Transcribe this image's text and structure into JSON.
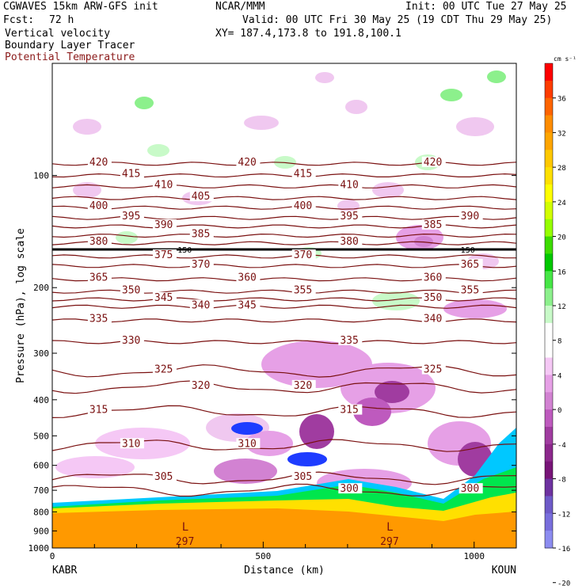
{
  "header": {
    "model": "CGWAVES 15km ARW-GFS init",
    "org": "NCAR/MMM",
    "init": "Init: 00 UTC Tue 27 May 25",
    "fcst_label": "Fcst:",
    "fcst_value": "72 h",
    "valid": "Valid: 00 UTC Fri 30 May 25 (19 CDT Thu 29 May 25)",
    "xy": "XY= 187.4,173.8 to 191.8,100.1",
    "field1": "Vertical velocity",
    "field2": "Boundary Layer Tracer",
    "field3": "Potential Temperature"
  },
  "chart_data": {
    "type": "heatmap",
    "xlabel": "Distance (km)",
    "ylabel": "Pressure (hPa), log scale",
    "x_ticks": [
      0,
      500,
      1000
    ],
    "xlim": [
      0,
      1100
    ],
    "y_ticks": [
      100,
      200,
      300,
      400,
      500,
      600,
      700,
      800,
      900,
      1000
    ],
    "ylim": [
      1000,
      50
    ],
    "left_station": "KABR",
    "right_station": "KOUN",
    "colorbar": {
      "unit": "cm s⁻¹",
      "labels": [
        36,
        32,
        28,
        24,
        20,
        16,
        12,
        8,
        4,
        0,
        -4,
        -8,
        -12,
        -16,
        -20
      ],
      "colors": [
        "#ff0000",
        "#ff3c00",
        "#ff6400",
        "#ff8c00",
        "#ffa500",
        "#ffc800",
        "#ffe000",
        "#ffff00",
        "#d2ff00",
        "#96ff00",
        "#3cdc00",
        "#00c800",
        "#46e646",
        "#8cf08c",
        "#c8fac8",
        "#ffffff",
        "#ffffff",
        "#f5c8f5",
        "#e6a0e6",
        "#d282d2",
        "#be5abe",
        "#a03ca0",
        "#8c288c",
        "#781478",
        "#6e32a0",
        "#6e5ac8",
        "#786edc",
        "#8c8cf0"
      ]
    },
    "theta_contours": [
      {
        "p": 93,
        "left_label": "420",
        "mid_label": "420",
        "right_label": "420"
      },
      {
        "p": 100,
        "left_label": "415",
        "mid_label": "415"
      },
      {
        "p": 107,
        "left_label": "410",
        "mid_label": "410"
      },
      {
        "p": 115,
        "left_label": "405"
      },
      {
        "p": 122,
        "left_label": "400",
        "mid_label": "400"
      },
      {
        "p": 130,
        "left_label": "395",
        "mid_label": "395",
        "right_label": "390"
      },
      {
        "p": 137,
        "left_label": "390",
        "right_label": "385"
      },
      {
        "p": 145,
        "left_label": "385"
      },
      {
        "p": 152,
        "left_label": "380",
        "mid_label": "380"
      },
      {
        "p": 158,
        "tropopause": true,
        "label": "150"
      },
      {
        "p": 165,
        "left_label": "375",
        "mid_label": "370"
      },
      {
        "p": 175,
        "left_label": "370",
        "right_label": "365"
      },
      {
        "p": 190,
        "left_label": "365",
        "mid_label": "360",
        "right_label": "360"
      },
      {
        "p": 205,
        "left_label": "350",
        "mid_label": "355",
        "right_label": "355"
      },
      {
        "p": 215,
        "left_label": "345",
        "right_label": "350"
      },
      {
        "p": 225,
        "left_label": "340",
        "mid_label": "345"
      },
      {
        "p": 245,
        "left_label": "335",
        "right_label": "340"
      },
      {
        "p": 280,
        "left_label": "330",
        "mid_label": "335"
      },
      {
        "p": 335,
        "left_label": "325",
        "right_label": "325"
      },
      {
        "p": 370,
        "left_label": "320",
        "mid_label": "320"
      },
      {
        "p": 430,
        "left_label": "315",
        "mid_label": "315"
      },
      {
        "p": 530,
        "left_label": "310",
        "mid_label": "310"
      },
      {
        "p": 650,
        "left_label": "305",
        "mid_label": "305"
      },
      {
        "p": 700,
        "mid_label": "300",
        "right_label": "300"
      }
    ],
    "theta_label_values": [
      "420",
      "415",
      "410",
      "405",
      "400",
      "395",
      "390",
      "385",
      "380",
      "375",
      "370",
      "365",
      "360",
      "355",
      "350",
      "345",
      "340",
      "335",
      "330",
      "325",
      "320",
      "315",
      "310",
      "305",
      "300",
      "297",
      "150"
    ],
    "low_markers": [
      {
        "x": 315,
        "label": "L",
        "value": "297"
      },
      {
        "x": 800,
        "label": "L",
        "value": "297"
      }
    ]
  }
}
